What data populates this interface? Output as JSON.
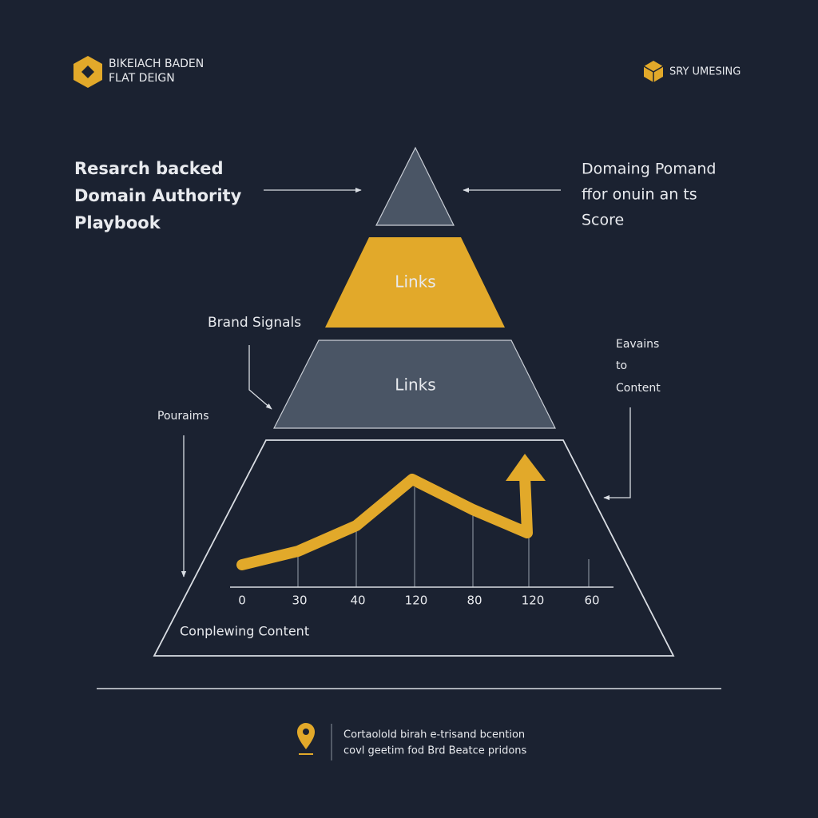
{
  "logo": {
    "line1": "BIKEIACH BADEN",
    "line2": "FLAT DEIGN"
  },
  "badge": "SRY UMESING",
  "heading": [
    "Resarch backed",
    "Domain Authority",
    "Playbook"
  ],
  "right_note": [
    "Domaing Pomand",
    "ffor onuin an ts",
    "Score"
  ],
  "pyramid": {
    "tier2": "Links",
    "tier3": "Links",
    "base": "Conplewing Content"
  },
  "callouts": {
    "brand": "Brand Signals",
    "left": "Pouraims",
    "right": [
      "Eavains",
      "to",
      "Content"
    ]
  },
  "axis_labels": [
    "0",
    "30",
    "40",
    "120",
    "80",
    "120",
    "60"
  ],
  "footer": [
    "Cortaolold birah e-trisand bcention",
    "covl geetim fod Brd Beatce pridons"
  ]
}
